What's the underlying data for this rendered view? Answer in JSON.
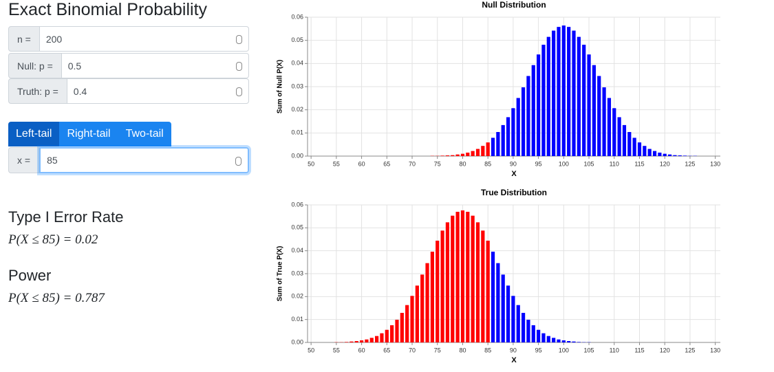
{
  "title": "Exact Binomial Probability",
  "inputs": [
    {
      "label": "n =",
      "value": "200"
    },
    {
      "label": "Null: p =",
      "value": "0.5"
    },
    {
      "label": "Truth: p =",
      "value": "0.4"
    }
  ],
  "tails": [
    "Left-tail",
    "Right-tail",
    "Two-tail"
  ],
  "selected_tail": 0,
  "x_input": {
    "label": "x =",
    "value": "85"
  },
  "results": [
    {
      "heading": "Type I Error Rate",
      "formula": "P(X ≤ 85) = 0.02"
    },
    {
      "heading": "Power",
      "formula": "P(X ≤ 85) = 0.787"
    }
  ],
  "chart_data": [
    {
      "type": "bar",
      "title": "Null Distribution",
      "x_label": "X",
      "y_label": "Sum of Null P(X)",
      "x": [
        55,
        56,
        57,
        58,
        59,
        60,
        61,
        62,
        63,
        64,
        65,
        66,
        67,
        68,
        69,
        70,
        71,
        72,
        73,
        74,
        75,
        76,
        77,
        78,
        79,
        80,
        81,
        82,
        83,
        84,
        85,
        86,
        87,
        88,
        89,
        90,
        91,
        92,
        93,
        94,
        95,
        96,
        97,
        98,
        99,
        100,
        101,
        102,
        103,
        104,
        105,
        106,
        107,
        108,
        109,
        110,
        111,
        112,
        113,
        114,
        115,
        116,
        117,
        118,
        119,
        120,
        121,
        122,
        123,
        124,
        125,
        126,
        127,
        128,
        129,
        130
      ],
      "values": [
        0,
        0,
        0,
        0,
        0,
        0,
        0,
        0,
        0,
        0,
        0,
        0,
        0,
        0,
        0,
        0,
        0,
        0,
        0,
        0.0001,
        0.0001,
        0.0002,
        0.0003,
        0.0004,
        0.0007,
        0.001,
        0.0015,
        0.0022,
        0.0031,
        0.0044,
        0.0059,
        0.0079,
        0.0104,
        0.0134,
        0.0168,
        0.0207,
        0.0251,
        0.0297,
        0.0346,
        0.0393,
        0.0439,
        0.0481,
        0.0515,
        0.0542,
        0.0558,
        0.0564,
        0.0558,
        0.0542,
        0.0515,
        0.0481,
        0.0439,
        0.0393,
        0.0346,
        0.0297,
        0.0251,
        0.0207,
        0.0168,
        0.0134,
        0.0104,
        0.0079,
        0.0059,
        0.0044,
        0.0031,
        0.0022,
        0.0015,
        0.001,
        0.0007,
        0.0004,
        0.0003,
        0.0002,
        0.0001,
        0.0001,
        0,
        0,
        0,
        0
      ],
      "color": "#0000ff",
      "highlight_color": "#ff0000",
      "xlim": [
        49.3,
        131
      ],
      "xticks": [
        50,
        55,
        60,
        65,
        70,
        75,
        80,
        85,
        90,
        95,
        100,
        105,
        110,
        115,
        120,
        125,
        130
      ],
      "ylim": [
        0,
        0.06
      ],
      "yticks": [
        {
          "value": 0,
          "label": "0.00"
        },
        {
          "value": 0.01,
          "label": "0.01"
        },
        {
          "value": 0.02,
          "label": "0.02"
        },
        {
          "value": 0.03,
          "label": "0.03"
        },
        {
          "value": 0.04,
          "label": "0.04"
        },
        {
          "value": 0.05,
          "label": "0.05"
        },
        {
          "value": 0.06,
          "label": "0.06"
        }
      ],
      "grid": true
    },
    {
      "type": "bar",
      "title": "True Distribution",
      "x_label": "X",
      "y_label": "Sum of True P(X)",
      "x": [
        55,
        56,
        57,
        58,
        59,
        60,
        61,
        62,
        63,
        64,
        65,
        66,
        67,
        68,
        69,
        70,
        71,
        72,
        73,
        74,
        75,
        76,
        77,
        78,
        79,
        80,
        81,
        82,
        83,
        84,
        85,
        86,
        87,
        88,
        89,
        90,
        91,
        92,
        93,
        94,
        95,
        96,
        97,
        98,
        99,
        100,
        101,
        102,
        103,
        104,
        105,
        106,
        107,
        108,
        109,
        110,
        111,
        112,
        113,
        114,
        115,
        116,
        117,
        118,
        119,
        120,
        121,
        122,
        123,
        124,
        125,
        126,
        127,
        128,
        129,
        130
      ],
      "values": [
        0.0001,
        0.0001,
        0.0002,
        0.0004,
        0.0006,
        0.0009,
        0.0013,
        0.002,
        0.0028,
        0.004,
        0.0055,
        0.0075,
        0.0099,
        0.0129,
        0.0163,
        0.0203,
        0.0248,
        0.0296,
        0.0346,
        0.0396,
        0.0444,
        0.0488,
        0.0524,
        0.0553,
        0.057,
        0.0576,
        0.057,
        0.0553,
        0.0524,
        0.0488,
        0.0444,
        0.0396,
        0.0346,
        0.0296,
        0.0248,
        0.0203,
        0.0163,
        0.0129,
        0.0099,
        0.0075,
        0.0055,
        0.004,
        0.0028,
        0.002,
        0.0013,
        0.0009,
        0.0006,
        0.0004,
        0.0002,
        0.0001,
        0.0001,
        0,
        0,
        0,
        0,
        0,
        0,
        0,
        0,
        0,
        0,
        0,
        0,
        0,
        0,
        0,
        0,
        0,
        0,
        0,
        0,
        0,
        0,
        0,
        0,
        0
      ],
      "color": "#0000ff",
      "highlight_color": "#ff0000",
      "xlim": [
        49.3,
        131
      ],
      "xticks": [
        50,
        55,
        60,
        65,
        70,
        75,
        80,
        85,
        90,
        95,
        100,
        105,
        110,
        115,
        120,
        125,
        130
      ],
      "ylim": [
        0,
        0.06
      ],
      "yticks": [
        {
          "value": 0,
          "label": "0.00"
        },
        {
          "value": 0.01,
          "label": "0.01"
        },
        {
          "value": 0.02,
          "label": "0.02"
        },
        {
          "value": 0.03,
          "label": "0.03"
        },
        {
          "value": 0.04,
          "label": "0.04"
        },
        {
          "value": 0.05,
          "label": "0.05"
        },
        {
          "value": 0.06,
          "label": "0.06"
        }
      ],
      "grid": true
    }
  ]
}
